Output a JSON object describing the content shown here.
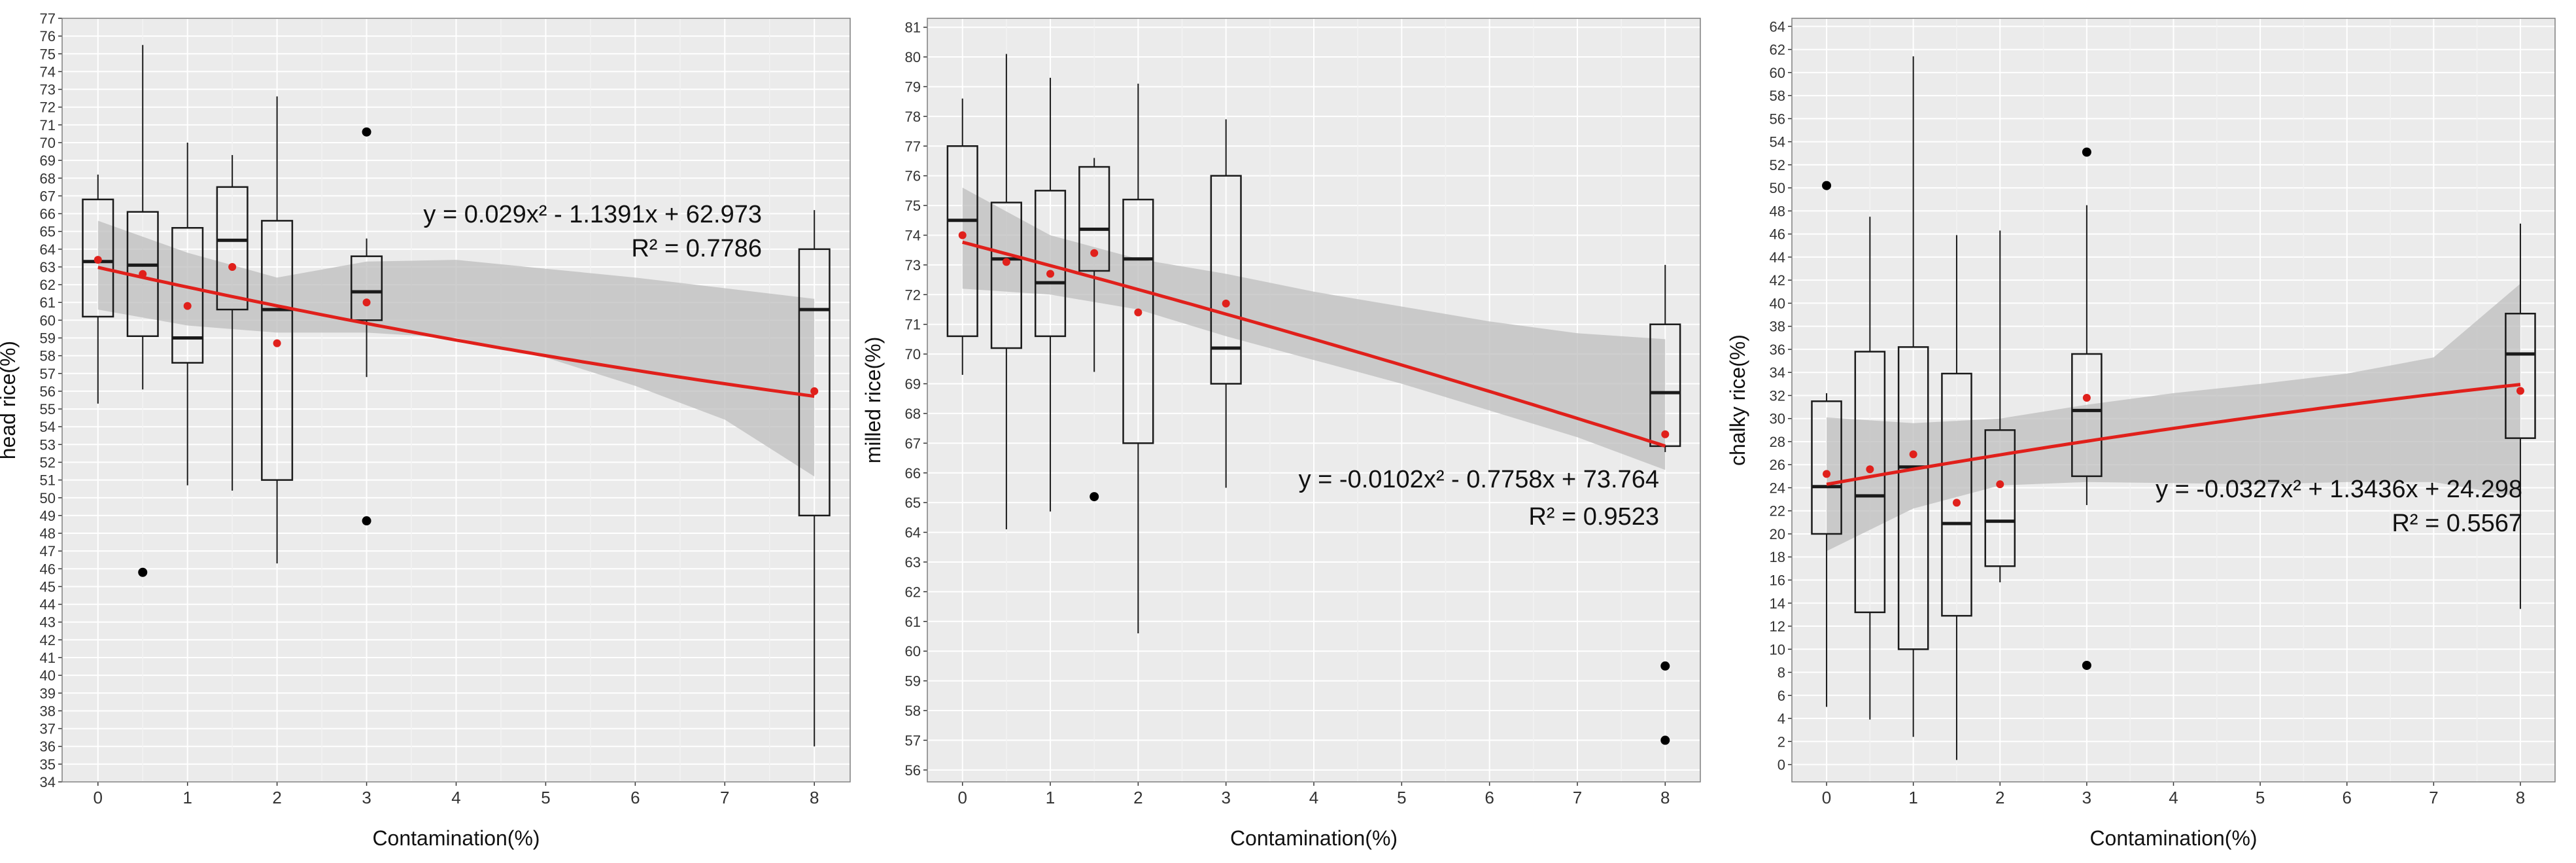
{
  "colors": {
    "panel_background": "#ebebeb",
    "grid_major": "#ffffff",
    "grid_minor": "#f3f3f3",
    "box_stroke": "#1a1a1a",
    "mean_point": "#e0201b",
    "outlier": "#000000",
    "fit_line": "#e0201b",
    "confidence_band": "#bdbdbd",
    "text": "#333333"
  },
  "chart_data": [
    {
      "type": "box",
      "title": "",
      "xlabel": "Contamination(%)",
      "ylabel": "head rice(%)",
      "xlim": [
        -0.4,
        8.4
      ],
      "ylim": [
        34,
        77
      ],
      "x_ticks": [
        0,
        1,
        2,
        3,
        4,
        5,
        6,
        7,
        8
      ],
      "y_ticks": {
        "start": 34,
        "end": 77,
        "step": 1
      },
      "grid": true,
      "legend": "none",
      "equation": "y = 0.029x² - 1.1391x + 62.973",
      "r_squared": "R² = 0.7786",
      "fit": {
        "a": 0.029,
        "b": -1.1391,
        "c": 62.973
      },
      "band": [
        {
          "x": 0,
          "lo": 60.6,
          "hi": 65.6
        },
        {
          "x": 1,
          "lo": 59.7,
          "hi": 63.8
        },
        {
          "x": 2,
          "lo": 59.3,
          "hi": 62.4
        },
        {
          "x": 3,
          "lo": 59.3,
          "hi": 63.3
        },
        {
          "x": 4,
          "lo": 59.0,
          "hi": 63.4
        },
        {
          "x": 5,
          "lo": 57.9,
          "hi": 62.9
        },
        {
          "x": 6,
          "lo": 56.3,
          "hi": 62.4
        },
        {
          "x": 7,
          "lo": 54.4,
          "hi": 61.8
        },
        {
          "x": 8,
          "lo": 51.2,
          "hi": 61.2
        }
      ],
      "boxes": [
        {
          "x": 0,
          "min": 55.3,
          "q1": 60.2,
          "median": 63.3,
          "q3": 66.8,
          "max": 68.2,
          "mean": 63.4,
          "outliers": []
        },
        {
          "x": 0.5,
          "min": 56.1,
          "q1": 59.1,
          "median": 63.1,
          "q3": 66.1,
          "max": 75.5,
          "mean": 62.6,
          "outliers": [
            45.8
          ]
        },
        {
          "x": 1,
          "min": 50.7,
          "q1": 57.6,
          "median": 59.0,
          "q3": 65.2,
          "max": 70.0,
          "mean": 60.8,
          "outliers": []
        },
        {
          "x": 1.5,
          "min": 50.4,
          "q1": 60.6,
          "median": 64.5,
          "q3": 67.5,
          "max": 69.3,
          "mean": 63.0,
          "outliers": []
        },
        {
          "x": 2,
          "min": 46.3,
          "q1": 51.0,
          "median": 60.6,
          "q3": 65.6,
          "max": 72.6,
          "mean": 58.7,
          "outliers": []
        },
        {
          "x": 3,
          "min": 56.8,
          "q1": 60.0,
          "median": 61.6,
          "q3": 63.6,
          "max": 64.6,
          "mean": 61.0,
          "outliers": [
            70.6,
            48.7
          ]
        },
        {
          "x": 8,
          "min": 36.0,
          "q1": 49.0,
          "median": 60.6,
          "q3": 64.0,
          "max": 66.2,
          "mean": 56.0,
          "outliers": []
        }
      ]
    },
    {
      "type": "box",
      "title": "",
      "xlabel": "Contamination(%)",
      "ylabel": "milled rice(%)",
      "xlim": [
        -0.4,
        8.4
      ],
      "ylim": [
        55.6,
        81.3
      ],
      "x_ticks": [
        0,
        1,
        2,
        3,
        4,
        5,
        6,
        7,
        8
      ],
      "y_ticks": {
        "start": 56,
        "end": 81,
        "step": 1
      },
      "grid": true,
      "legend": "none",
      "equation": "y = -0.0102x² - 0.7758x + 73.764",
      "r_squared": "R² = 0.9523",
      "fit": {
        "a": -0.0102,
        "b": -0.7758,
        "c": 73.764
      },
      "band": [
        {
          "x": 0,
          "lo": 72.2,
          "hi": 75.6
        },
        {
          "x": 1,
          "lo": 72.0,
          "hi": 74.0
        },
        {
          "x": 2,
          "lo": 71.5,
          "hi": 73.2
        },
        {
          "x": 3,
          "lo": 70.6,
          "hi": 72.7
        },
        {
          "x": 4,
          "lo": 69.8,
          "hi": 72.1
        },
        {
          "x": 5,
          "lo": 69.0,
          "hi": 71.6
        },
        {
          "x": 6,
          "lo": 68.1,
          "hi": 71.1
        },
        {
          "x": 7,
          "lo": 67.2,
          "hi": 70.7
        },
        {
          "x": 8,
          "lo": 66.1,
          "hi": 70.5
        }
      ],
      "boxes": [
        {
          "x": 0,
          "min": 69.3,
          "q1": 70.6,
          "median": 74.5,
          "q3": 77.0,
          "max": 78.6,
          "mean": 74.0,
          "outliers": []
        },
        {
          "x": 0.5,
          "min": 64.1,
          "q1": 70.2,
          "median": 73.2,
          "q3": 75.1,
          "max": 80.1,
          "mean": 73.1,
          "outliers": []
        },
        {
          "x": 1,
          "min": 64.7,
          "q1": 70.6,
          "median": 72.4,
          "q3": 75.5,
          "max": 79.3,
          "mean": 72.7,
          "outliers": []
        },
        {
          "x": 1.5,
          "min": 69.4,
          "q1": 72.8,
          "median": 74.2,
          "q3": 76.3,
          "max": 76.6,
          "mean": 73.4,
          "outliers": [
            65.2
          ]
        },
        {
          "x": 2,
          "min": 60.6,
          "q1": 67.0,
          "median": 73.2,
          "q3": 75.2,
          "max": 79.1,
          "mean": 71.4,
          "outliers": []
        },
        {
          "x": 3,
          "min": 65.5,
          "q1": 69.0,
          "median": 70.2,
          "q3": 76.0,
          "max": 77.9,
          "mean": 71.7,
          "outliers": []
        },
        {
          "x": 8,
          "min": 66.7,
          "q1": 66.9,
          "median": 68.7,
          "q3": 71.0,
          "max": 73.0,
          "mean": 67.3,
          "outliers": [
            59.5,
            57.0
          ]
        }
      ]
    },
    {
      "type": "box",
      "title": "",
      "xlabel": "Contamination(%)",
      "ylabel": "chalky rice(%)",
      "xlim": [
        -0.4,
        8.4
      ],
      "ylim": [
        -1.5,
        64.7
      ],
      "x_ticks": [
        0,
        1,
        2,
        3,
        4,
        5,
        6,
        7,
        8
      ],
      "y_ticks": {
        "start": 0,
        "end": 64,
        "step": 2
      },
      "grid": true,
      "legend": "none",
      "equation": "y = -0.0327x² + 1.3436x + 24.298",
      "r_squared": "R² = 0.5567",
      "fit": {
        "a": -0.0327,
        "b": 1.3436,
        "c": 24.298
      },
      "band": [
        {
          "x": 0,
          "lo": 18.5,
          "hi": 30.1
        },
        {
          "x": 1,
          "lo": 22.2,
          "hi": 29.6
        },
        {
          "x": 2,
          "lo": 24.2,
          "hi": 30.0
        },
        {
          "x": 3,
          "lo": 24.5,
          "hi": 31.2
        },
        {
          "x": 4,
          "lo": 24.4,
          "hi": 32.2
        },
        {
          "x": 5,
          "lo": 24.3,
          "hi": 33.0
        },
        {
          "x": 6,
          "lo": 24.5,
          "hi": 33.9
        },
        {
          "x": 7,
          "lo": 24.5,
          "hi": 35.3
        },
        {
          "x": 8,
          "lo": 23.2,
          "hi": 41.7
        }
      ],
      "boxes": [
        {
          "x": 0,
          "min": 5.0,
          "q1": 20.0,
          "median": 24.1,
          "q3": 31.5,
          "max": 32.2,
          "mean": 25.2,
          "outliers": [
            50.2
          ]
        },
        {
          "x": 0.5,
          "min": 3.9,
          "q1": 13.2,
          "median": 23.3,
          "q3": 35.8,
          "max": 47.5,
          "mean": 25.6,
          "outliers": []
        },
        {
          "x": 1,
          "min": 2.4,
          "q1": 10.0,
          "median": 25.8,
          "q3": 36.2,
          "max": 61.4,
          "mean": 26.9,
          "outliers": []
        },
        {
          "x": 1.5,
          "min": 0.4,
          "q1": 12.9,
          "median": 20.9,
          "q3": 33.9,
          "max": 45.9,
          "mean": 22.7,
          "outliers": []
        },
        {
          "x": 2,
          "min": 15.8,
          "q1": 17.2,
          "median": 21.1,
          "q3": 29.0,
          "max": 46.3,
          "mean": 24.3,
          "outliers": []
        },
        {
          "x": 3,
          "min": 22.5,
          "q1": 25.0,
          "median": 30.7,
          "q3": 35.6,
          "max": 48.5,
          "mean": 31.8,
          "outliers": [
            53.1,
            8.6
          ]
        },
        {
          "x": 8,
          "min": 13.5,
          "q1": 28.3,
          "median": 35.6,
          "q3": 39.1,
          "max": 46.9,
          "mean": 32.4,
          "outliers": []
        }
      ]
    }
  ]
}
